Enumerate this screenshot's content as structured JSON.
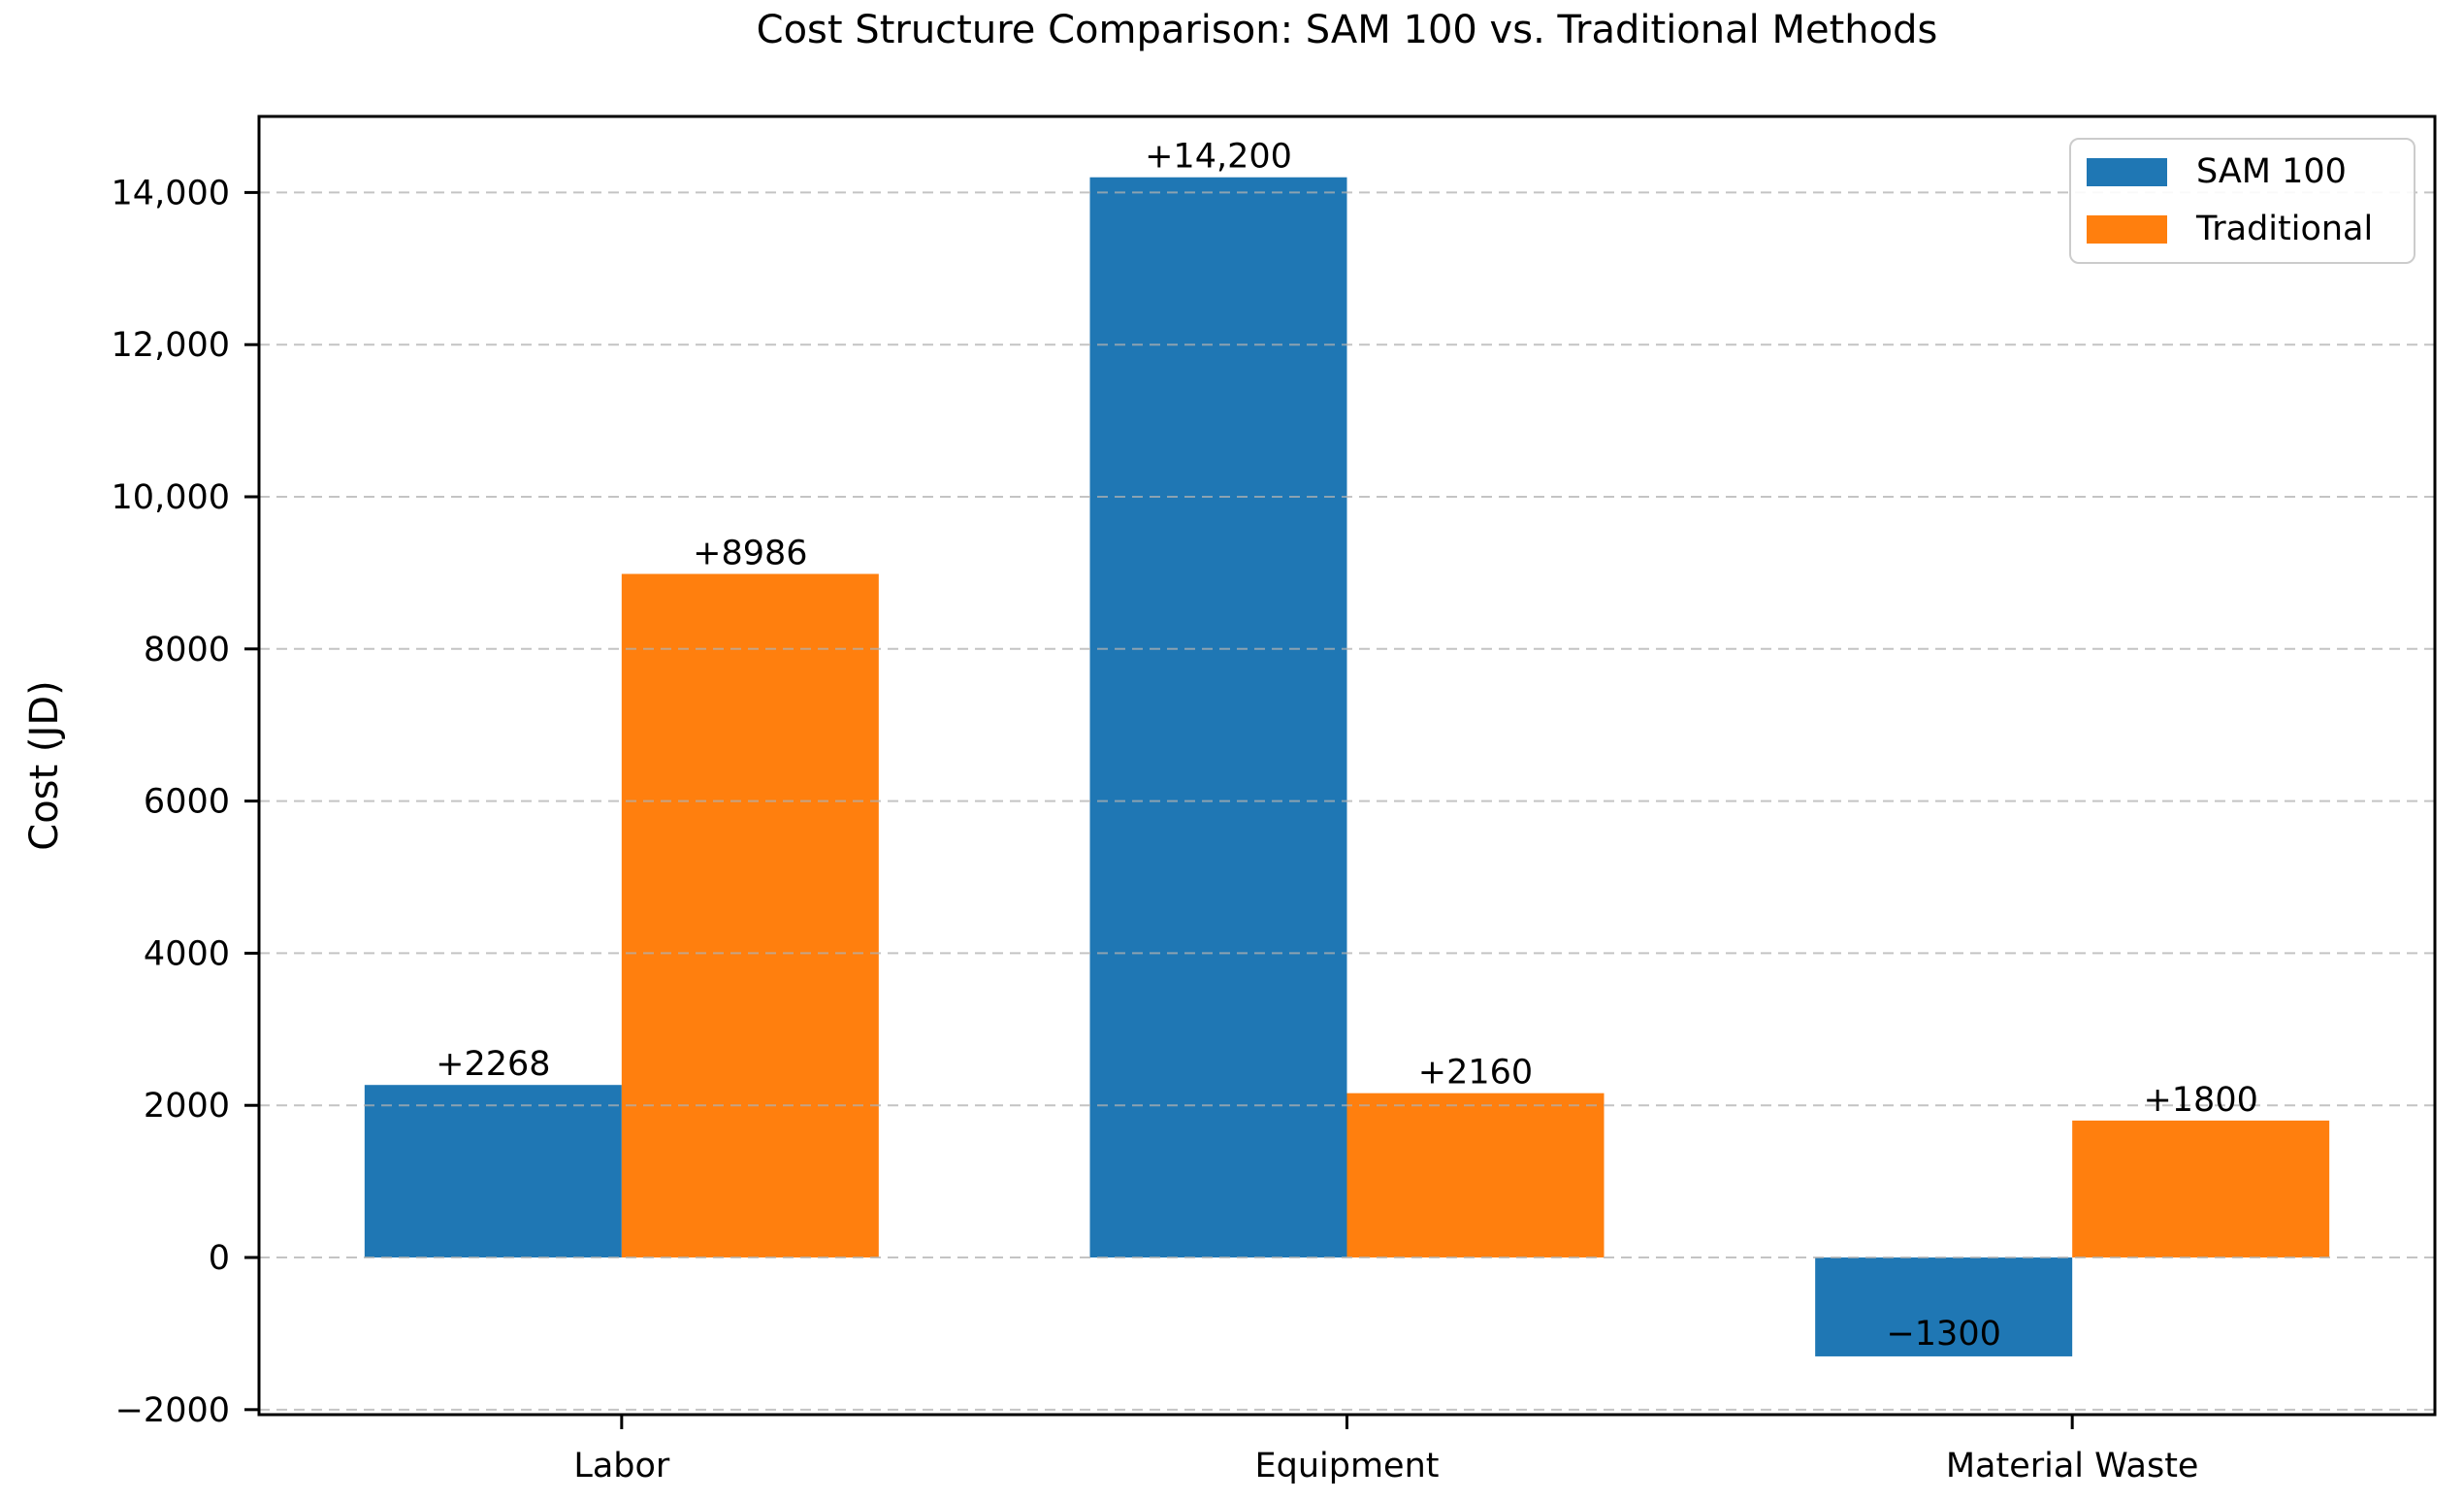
{
  "chart_data": {
    "type": "bar",
    "title": "Cost Structure Comparison: SAM 100 vs. Traditional Methods",
    "xlabel": "",
    "ylabel": "Cost (JD)",
    "categories": [
      "Labor",
      "Equipment",
      "Material Waste"
    ],
    "series": [
      {
        "name": "SAM 100",
        "color": "#1f77b4",
        "values": [
          2268,
          14200,
          -1300
        ],
        "value_labels": [
          "+2268",
          "+14,200",
          "−1300"
        ]
      },
      {
        "name": "Traditional",
        "color": "#ff7f0e",
        "values": [
          8986,
          2160,
          1800
        ],
        "value_labels": [
          "+8986",
          "+2160",
          "+1800"
        ]
      }
    ],
    "yticks": [
      {
        "value": -2000,
        "label": "−2000"
      },
      {
        "value": 0,
        "label": "0"
      },
      {
        "value": 2000,
        "label": "2000"
      },
      {
        "value": 4000,
        "label": "4000"
      },
      {
        "value": 6000,
        "label": "6000"
      },
      {
        "value": 8000,
        "label": "8000"
      },
      {
        "value": 10000,
        "label": "10,000"
      },
      {
        "value": 12000,
        "label": "12,000"
      },
      {
        "value": 14000,
        "label": "14,000"
      }
    ],
    "ylim": [
      -2066,
      15000
    ],
    "grid": "horizontal-dashed",
    "grid_color": "#b0b0b0",
    "legend_position": "upper-right"
  }
}
